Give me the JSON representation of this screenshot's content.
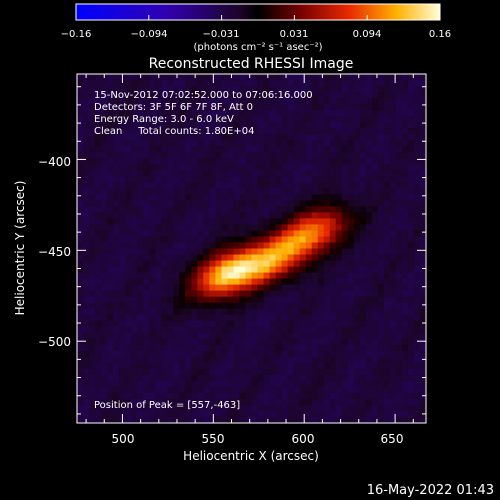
{
  "colorbar": {
    "ticks": [
      "−0.16",
      "−0.094",
      "−0.031",
      "0.031",
      "0.094",
      "0.16"
    ],
    "min": -0.16,
    "max": 0.16,
    "unit_label": "(photons cm⁻² s⁻¹ asec⁻²)"
  },
  "chart_data": {
    "type": "heatmap",
    "title": "Reconstructed RHESSI Image",
    "xlabel": "Heliocentric X (arcsec)",
    "ylabel": "Heliocentric Y (arcsec)",
    "xlim": [
      475,
      667
    ],
    "ylim": [
      -545,
      -353
    ],
    "xticks": [
      500,
      550,
      600,
      650
    ],
    "yticks": [
      -400,
      -450,
      -500
    ],
    "xtick_labels": [
      "500",
      "550",
      "600",
      "650"
    ],
    "ytick_labels": [
      "−400",
      "−450",
      "−500"
    ],
    "annotations": [
      "15-Nov-2012 07:02:52.000 to 07:06:16.000",
      "Detectors: 3F 5F 6F 7F 8F, Att 0",
      "Energy Range: 3.0 - 6.0 keV",
      "Clean     Total counts: 1.80E+04"
    ],
    "peak_label": "Position of Peak = [557,-463]",
    "peak": [
      557,
      -463
    ],
    "sources": [
      {
        "x": 558,
        "y": -463,
        "amplitude": 0.16
      },
      {
        "x": 605,
        "y": -440,
        "amplitude": 0.12
      },
      {
        "x": 583,
        "y": -455,
        "amplitude": 0.11
      }
    ],
    "value_range": [
      -0.16,
      0.16
    ]
  },
  "timestamp": "16-May-2022 01:43"
}
